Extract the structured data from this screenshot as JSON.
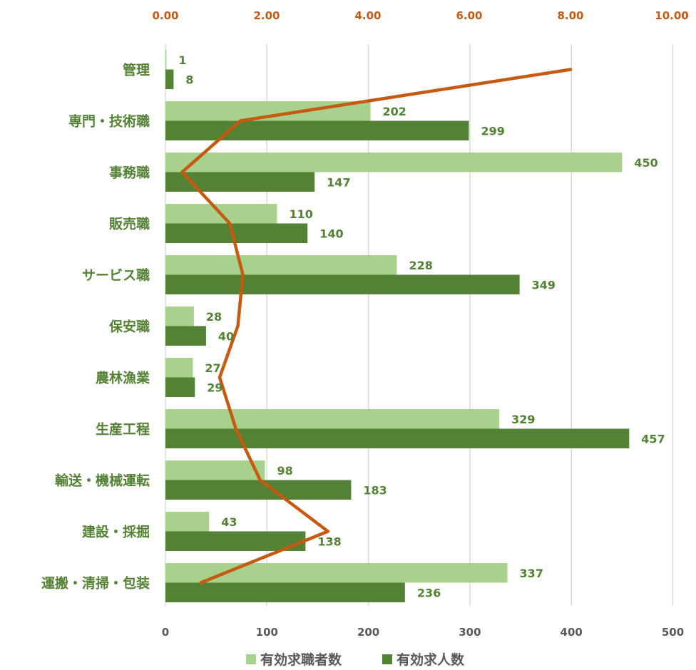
{
  "chart_data": {
    "type": "bar",
    "orientation": "horizontal",
    "categories": [
      "管理",
      "専門・技術職",
      "事務職",
      "販売職",
      "サービス職",
      "保安職",
      "農林漁業",
      "生産工程",
      "輸送・機械運転",
      "建設・採掘",
      "運搬・清掃・包装"
    ],
    "series": [
      {
        "name": "有効求職者数",
        "values": [
          1,
          202,
          450,
          110,
          228,
          28,
          27,
          329,
          98,
          43,
          337
        ],
        "color": "#A9D18E"
      },
      {
        "name": "有効求人数",
        "values": [
          8,
          299,
          147,
          140,
          349,
          40,
          29,
          457,
          183,
          138,
          236
        ],
        "color": "#548235"
      }
    ],
    "line_series": {
      "type": "line",
      "axis": "secondary-top",
      "color": "#C55A11",
      "values": [
        8.0,
        1.48,
        0.33,
        1.27,
        1.53,
        1.43,
        1.07,
        1.39,
        1.87,
        3.21,
        0.7
      ]
    },
    "x_axis": {
      "ticks": [
        "0",
        "100",
        "200",
        "300",
        "400",
        "500"
      ],
      "range": [
        0,
        500
      ]
    },
    "x2_axis": {
      "ticks": [
        "0.00",
        "2.00",
        "4.00",
        "6.00",
        "8.00",
        "10.00"
      ],
      "range": [
        0,
        10
      ]
    },
    "grid": true,
    "legend_position": "bottom"
  }
}
